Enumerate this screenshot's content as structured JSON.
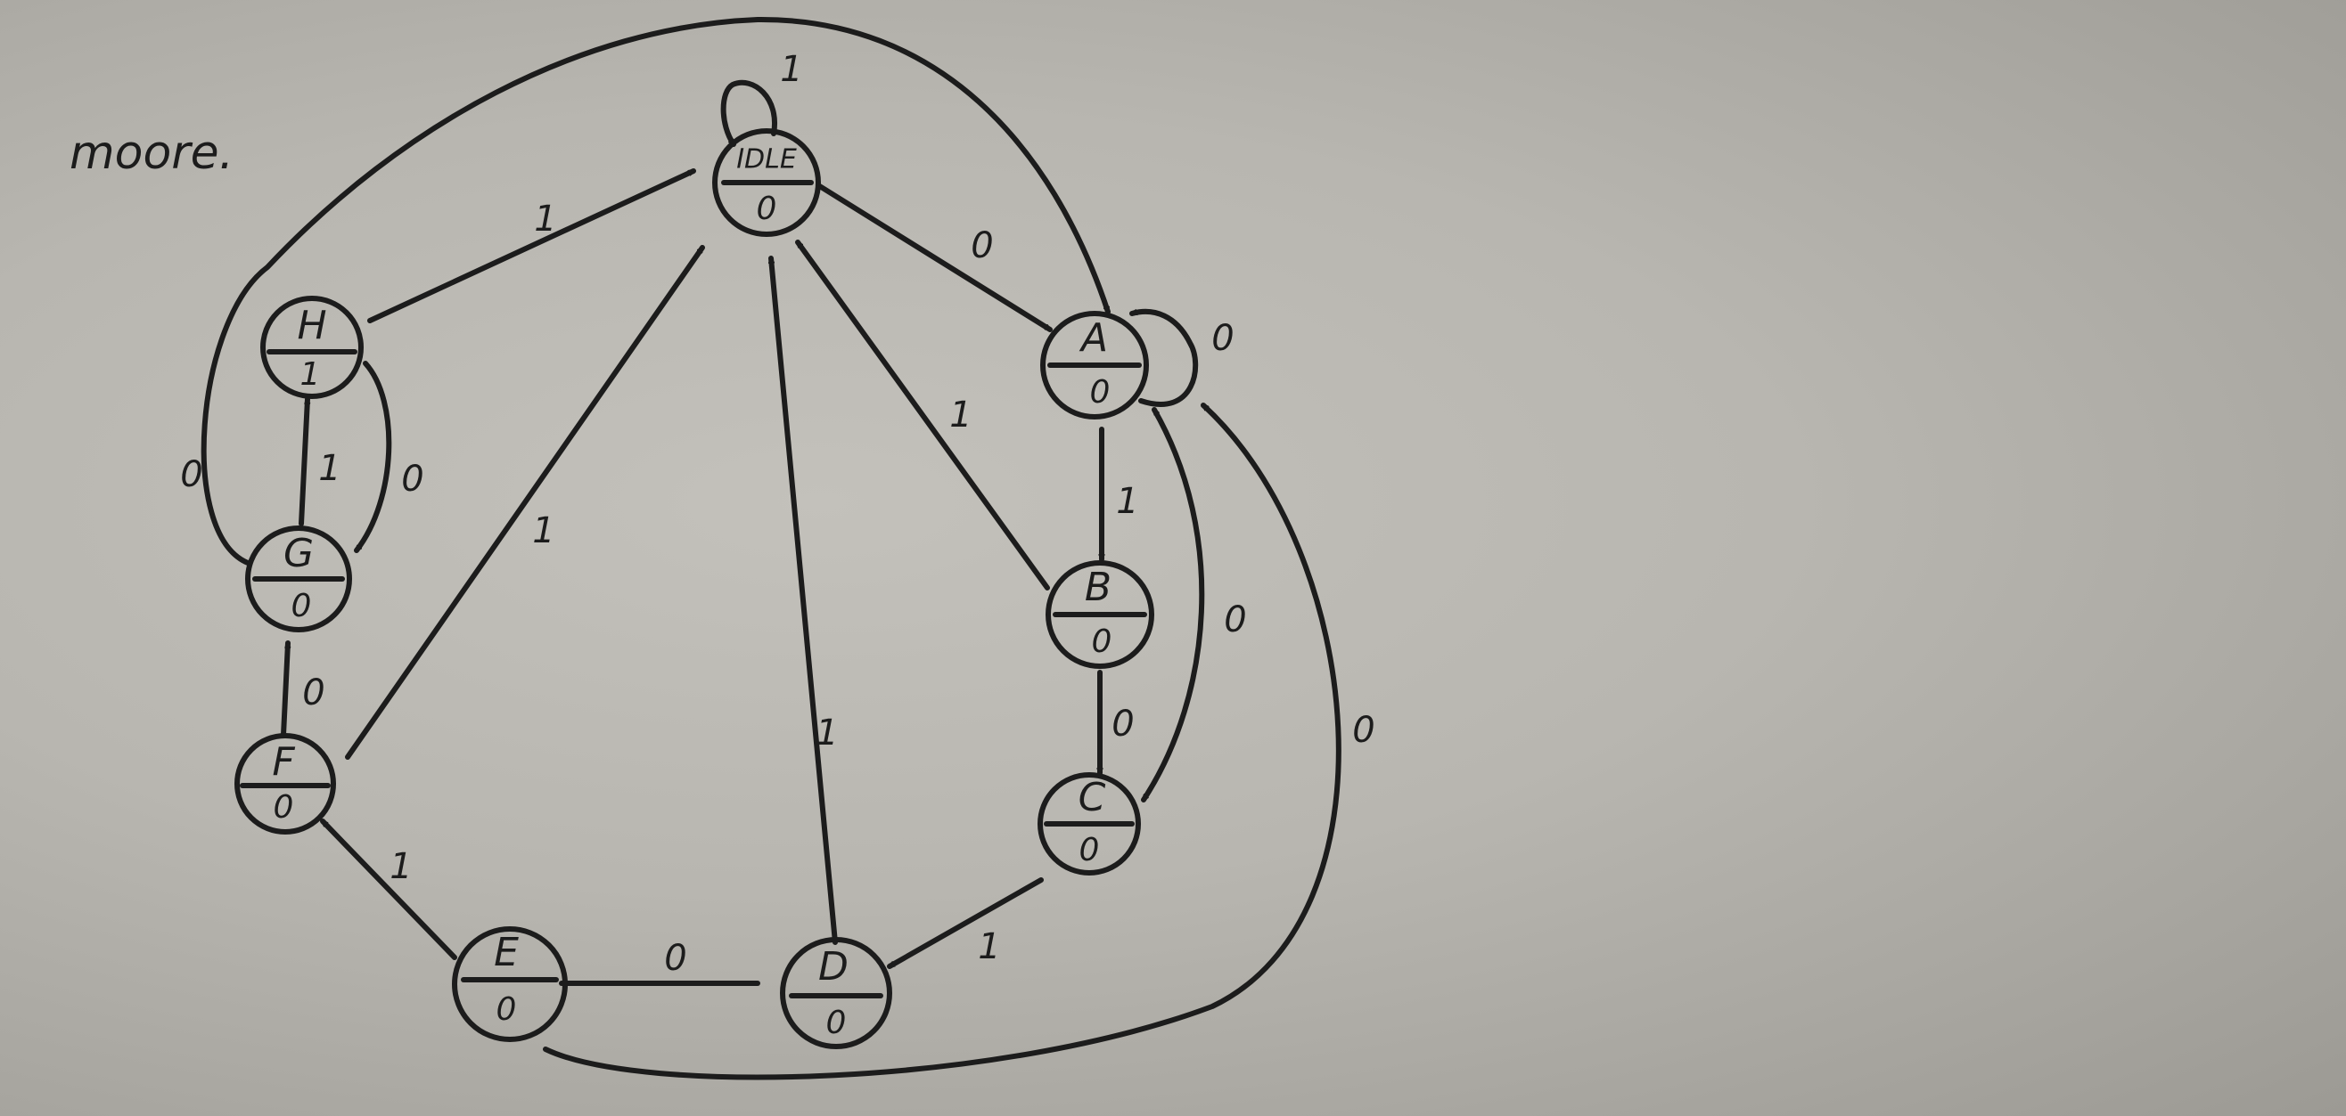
{
  "title": "moore.",
  "states": [
    {
      "id": "IDLE",
      "name": "IDLE",
      "output": "0"
    },
    {
      "id": "A",
      "name": "A",
      "output": "0"
    },
    {
      "id": "B",
      "name": "B",
      "output": "0"
    },
    {
      "id": "C",
      "name": "C",
      "output": "0"
    },
    {
      "id": "D",
      "name": "D",
      "output": "0"
    },
    {
      "id": "E",
      "name": "E",
      "output": "0"
    },
    {
      "id": "F",
      "name": "F",
      "output": "0"
    },
    {
      "id": "G",
      "name": "G",
      "output": "0"
    },
    {
      "id": "H",
      "name": "H",
      "output": "1"
    }
  ],
  "transitions": [
    {
      "from": "IDLE",
      "to": "IDLE",
      "label": "1"
    },
    {
      "from": "IDLE",
      "to": "A",
      "label": "0"
    },
    {
      "from": "A",
      "to": "A",
      "label": "0"
    },
    {
      "from": "A",
      "to": "B",
      "label": "1"
    },
    {
      "from": "B",
      "to": "IDLE",
      "label": "1"
    },
    {
      "from": "B",
      "to": "C",
      "label": "0"
    },
    {
      "from": "A",
      "to": "C",
      "label": "0"
    },
    {
      "from": "C",
      "to": "D",
      "label": "1"
    },
    {
      "from": "D",
      "to": "IDLE",
      "label": "1"
    },
    {
      "from": "D",
      "to": "E",
      "label": "0"
    },
    {
      "from": "E",
      "to": "A",
      "label": "0"
    },
    {
      "from": "E",
      "to": "F",
      "label": "1"
    },
    {
      "from": "F",
      "to": "IDLE",
      "label": "1"
    },
    {
      "from": "F",
      "to": "G",
      "label": "0"
    },
    {
      "from": "G",
      "to": "H",
      "label": "1"
    },
    {
      "from": "H",
      "to": "G",
      "label": "0"
    },
    {
      "from": "G",
      "to": "A",
      "label": "0"
    },
    {
      "from": "H",
      "to": "IDLE",
      "label": "1"
    }
  ]
}
